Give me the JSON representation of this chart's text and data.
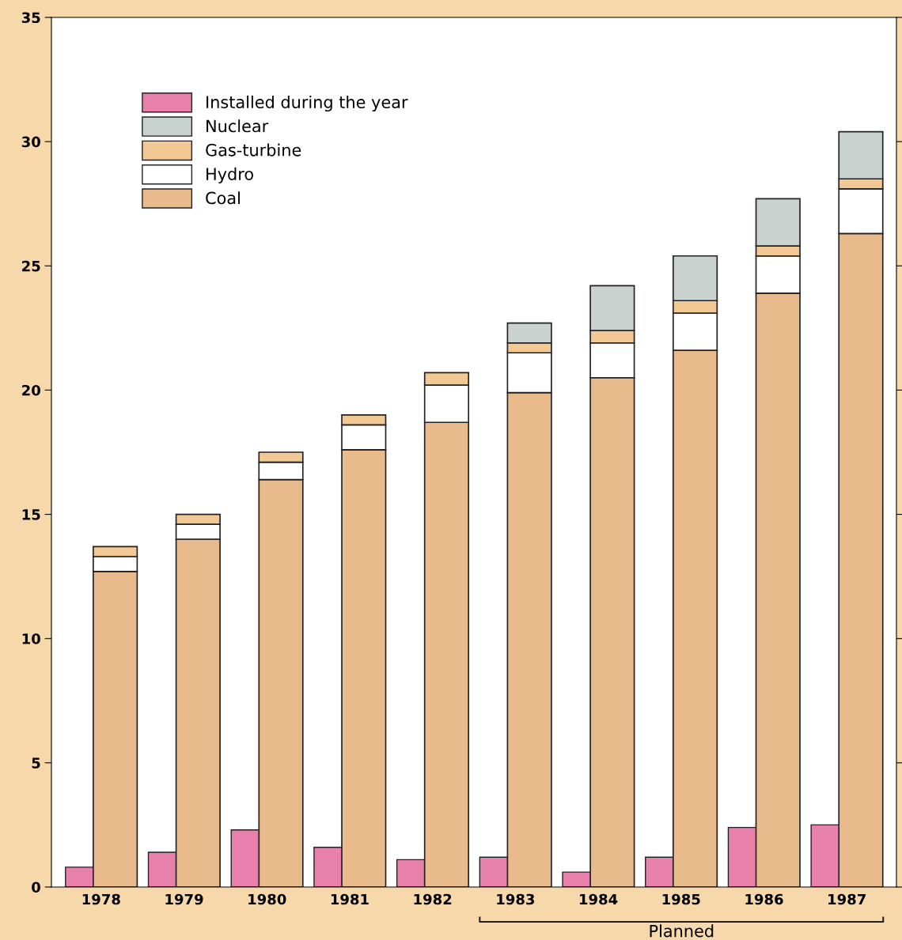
{
  "chart_data": {
    "type": "bar",
    "categories": [
      "1978",
      "1979",
      "1980",
      "1981",
      "1982",
      "1983",
      "1984",
      "1985",
      "1986",
      "1987"
    ],
    "series": [
      {
        "name": "Installed during the year",
        "color": "#e880ac",
        "values": [
          0.8,
          1.4,
          2.3,
          1.6,
          1.1,
          1.2,
          0.6,
          1.2,
          2.4,
          2.5
        ]
      },
      {
        "name": "Coal",
        "color": "#e9bb8c",
        "base": [
          0,
          0,
          0,
          0,
          0,
          0,
          0,
          0,
          0,
          0
        ],
        "values": [
          12.7,
          14.0,
          16.4,
          17.6,
          18.7,
          19.9,
          20.5,
          21.6,
          23.9,
          26.3
        ]
      },
      {
        "name": "Hydro",
        "color": "#ffffff",
        "base": [
          12.7,
          14.0,
          16.4,
          17.6,
          18.7,
          19.9,
          20.5,
          21.6,
          23.9,
          26.3
        ],
        "values": [
          0.6,
          0.6,
          0.7,
          1.0,
          1.5,
          1.6,
          1.4,
          1.5,
          1.5,
          1.8
        ]
      },
      {
        "name": "Gas-turbine",
        "color": "#f2c894",
        "base": [
          13.3,
          14.6,
          17.1,
          18.6,
          20.2,
          21.5,
          21.9,
          23.1,
          25.4,
          28.1
        ],
        "values": [
          0.4,
          0.4,
          0.4,
          0.4,
          0.5,
          0.4,
          0.5,
          0.5,
          0.4,
          0.4
        ]
      },
      {
        "name": "Nuclear",
        "color": "#c9d2cf",
        "base": [
          null,
          null,
          null,
          null,
          null,
          21.9,
          22.4,
          23.6,
          25.8,
          28.5
        ],
        "values": [
          null,
          null,
          null,
          null,
          null,
          0.8,
          1.8,
          1.8,
          1.9,
          1.9
        ]
      }
    ],
    "ylim": [
      0,
      35
    ],
    "yticks": [
      0,
      5,
      10,
      15,
      20,
      25,
      30,
      35
    ],
    "annotations": [
      "Planned"
    ],
    "legend": "top left"
  }
}
